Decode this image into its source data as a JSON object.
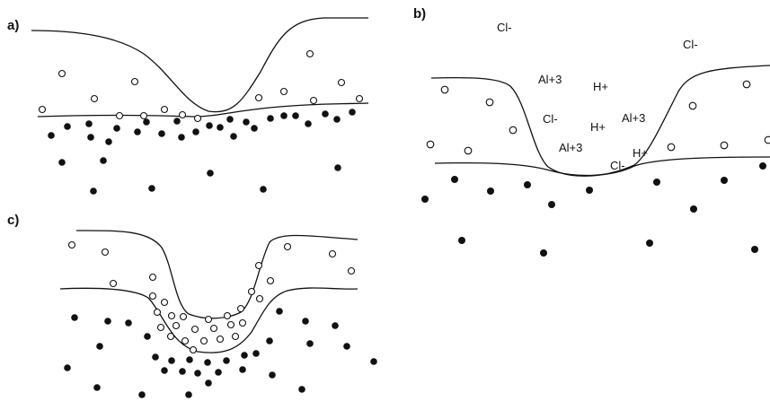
{
  "panels": {
    "a": {
      "label": "a)"
    },
    "b": {
      "label": "b)",
      "ions": [
        "Cl-",
        "Cl-",
        "Al+3",
        "H+",
        "Cl-",
        "H+",
        "Al+3",
        "Al+3",
        "H+",
        "Cl-"
      ]
    },
    "c": {
      "label": "c)"
    }
  },
  "colors": {
    "ink": "#111111",
    "background": "#ffffff"
  }
}
